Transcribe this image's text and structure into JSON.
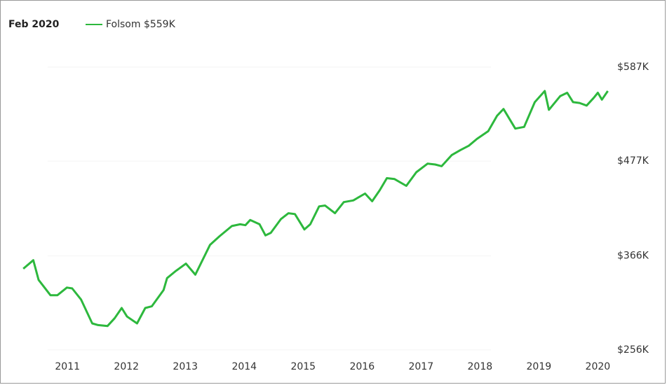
{
  "chart_data": {
    "type": "line",
    "title": "Feb 2020",
    "x": [
      2010.25,
      2010.42,
      2010.51,
      2010.71,
      2010.83,
      2010.99,
      2011.08,
      2011.23,
      2011.42,
      2011.52,
      2011.68,
      2011.8,
      2011.92,
      2012.01,
      2012.18,
      2012.32,
      2012.43,
      2012.63,
      2012.69,
      2012.83,
      2013.01,
      2013.17,
      2013.42,
      2013.58,
      2013.79,
      2013.93,
      2014.02,
      2014.1,
      2014.26,
      2014.36,
      2014.45,
      2014.62,
      2014.75,
      2014.86,
      2015.02,
      2015.12,
      2015.27,
      2015.37,
      2015.54,
      2015.69,
      2015.85,
      2016.05,
      2016.17,
      2016.3,
      2016.42,
      2016.55,
      2016.75,
      2016.92,
      2017.11,
      2017.24,
      2017.35,
      2017.52,
      2017.67,
      2017.81,
      2017.95,
      2018.14,
      2018.29,
      2018.4,
      2018.6,
      2018.75,
      2018.93,
      2019.1,
      2019.17,
      2019.36,
      2019.48,
      2019.58,
      2019.69,
      2019.81,
      2019.93,
      2020.0,
      2020.07,
      2020.17
    ],
    "series": [
      {
        "name": "Folsom $559K",
        "color": "#2db83d",
        "values": [
          351,
          361,
          338,
          320,
          320,
          329,
          328,
          315,
          287,
          285,
          284,
          293,
          305,
          295,
          287,
          305,
          307,
          326,
          340,
          348,
          357,
          344,
          379,
          389,
          401,
          403,
          402,
          408,
          403,
          390,
          393,
          409,
          416,
          415,
          397,
          403,
          424,
          425,
          416,
          429,
          431,
          439,
          430,
          443,
          457,
          456,
          448,
          464,
          474,
          473,
          471,
          484,
          490,
          495,
          503,
          512,
          530,
          538,
          515,
          517,
          546,
          559,
          537,
          553,
          557,
          546,
          545,
          542,
          551,
          557,
          549,
          559
        ]
      }
    ],
    "xlim": [
      2009.95,
      2020.21
    ],
    "xticks": [
      2011,
      2012,
      2013,
      2014,
      2015,
      2016,
      2017,
      2018,
      2019,
      2020
    ],
    "ylim": [
      219,
      659
    ],
    "yticks": [
      {
        "value": 256,
        "label": "$256K"
      },
      {
        "value": 366,
        "label": "$366K"
      },
      {
        "value": 477,
        "label": "$477K"
      },
      {
        "value": 587,
        "label": "$587K"
      }
    ],
    "grid": true
  }
}
